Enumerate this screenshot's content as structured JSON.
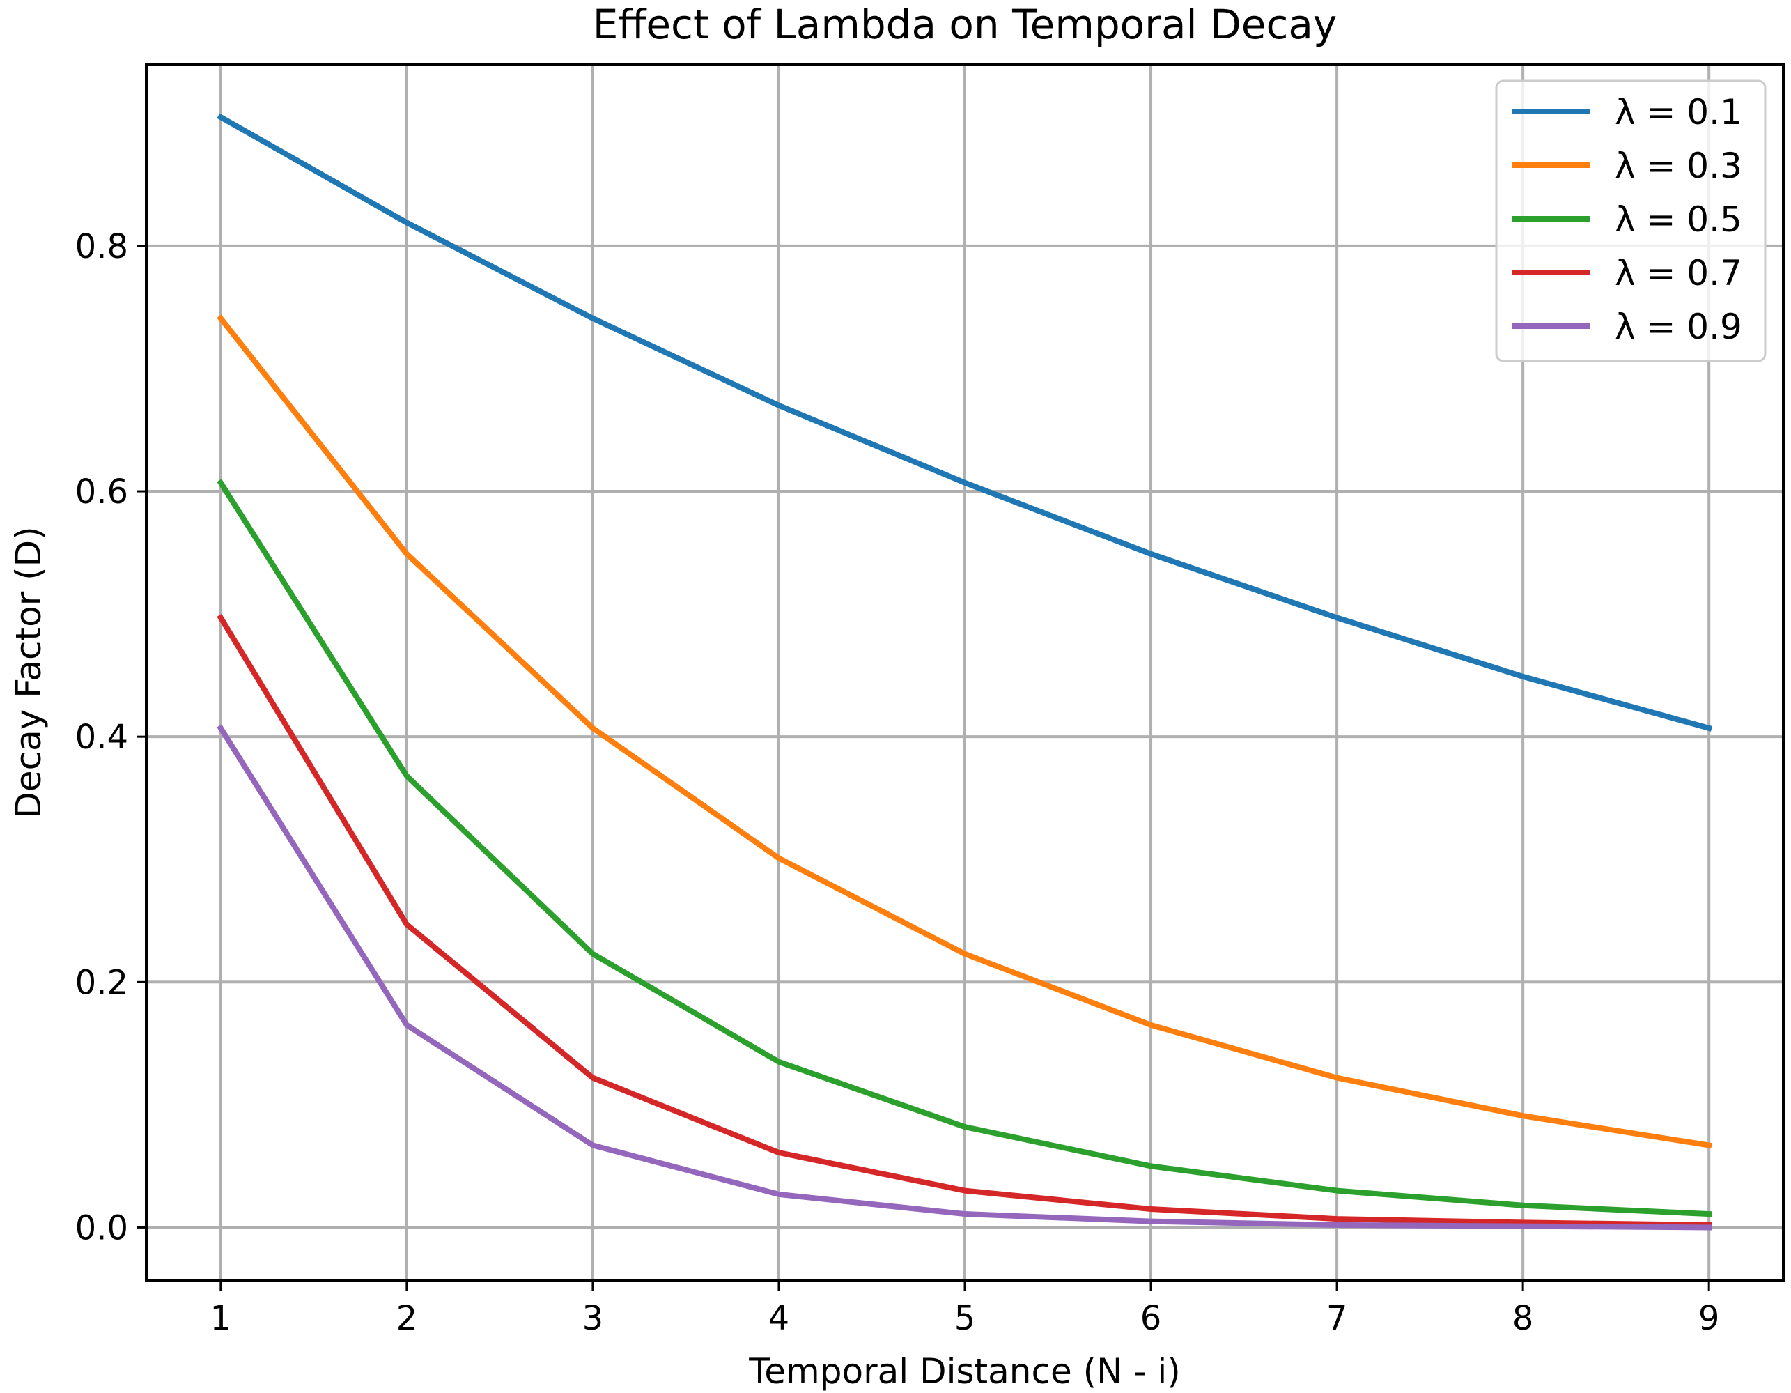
{
  "chart_data": {
    "type": "line",
    "title": "Effect of Lambda on Temporal Decay",
    "xlabel": "Temporal Distance (N - i)",
    "ylabel": "Decay Factor (D)",
    "x": [
      1,
      2,
      3,
      4,
      5,
      6,
      7,
      8,
      9
    ],
    "xticks": [
      1,
      2,
      3,
      4,
      5,
      6,
      7,
      8,
      9
    ],
    "xtick_labels": [
      "1",
      "2",
      "3",
      "4",
      "5",
      "6",
      "7",
      "8",
      "9"
    ],
    "yticks": [
      0.0,
      0.2,
      0.4,
      0.6,
      0.8
    ],
    "ytick_labels": [
      "0.0",
      "0.2",
      "0.4",
      "0.6",
      "0.8"
    ],
    "xlim": [
      0.6,
      9.4
    ],
    "ylim": [
      -0.0435,
      0.9482
    ],
    "grid": true,
    "legend_position": "top-right",
    "series": [
      {
        "name": "λ = 0.1",
        "color": "#1f77b4",
        "values": [
          0.905,
          0.819,
          0.741,
          0.67,
          0.607,
          0.549,
          0.497,
          0.449,
          0.407
        ]
      },
      {
        "name": "λ = 0.3",
        "color": "#ff7f0e",
        "values": [
          0.741,
          0.549,
          0.407,
          0.301,
          0.223,
          0.165,
          0.122,
          0.091,
          0.067
        ]
      },
      {
        "name": "λ = 0.5",
        "color": "#2ca02c",
        "values": [
          0.607,
          0.368,
          0.223,
          0.135,
          0.082,
          0.05,
          0.03,
          0.018,
          0.011
        ]
      },
      {
        "name": "λ = 0.7",
        "color": "#d62728",
        "values": [
          0.497,
          0.247,
          0.122,
          0.061,
          0.03,
          0.015,
          0.007,
          0.004,
          0.002
        ]
      },
      {
        "name": "λ = 0.9",
        "color": "#9467bd",
        "values": [
          0.407,
          0.165,
          0.067,
          0.027,
          0.011,
          0.005,
          0.002,
          0.001,
          0.0
        ]
      }
    ]
  }
}
